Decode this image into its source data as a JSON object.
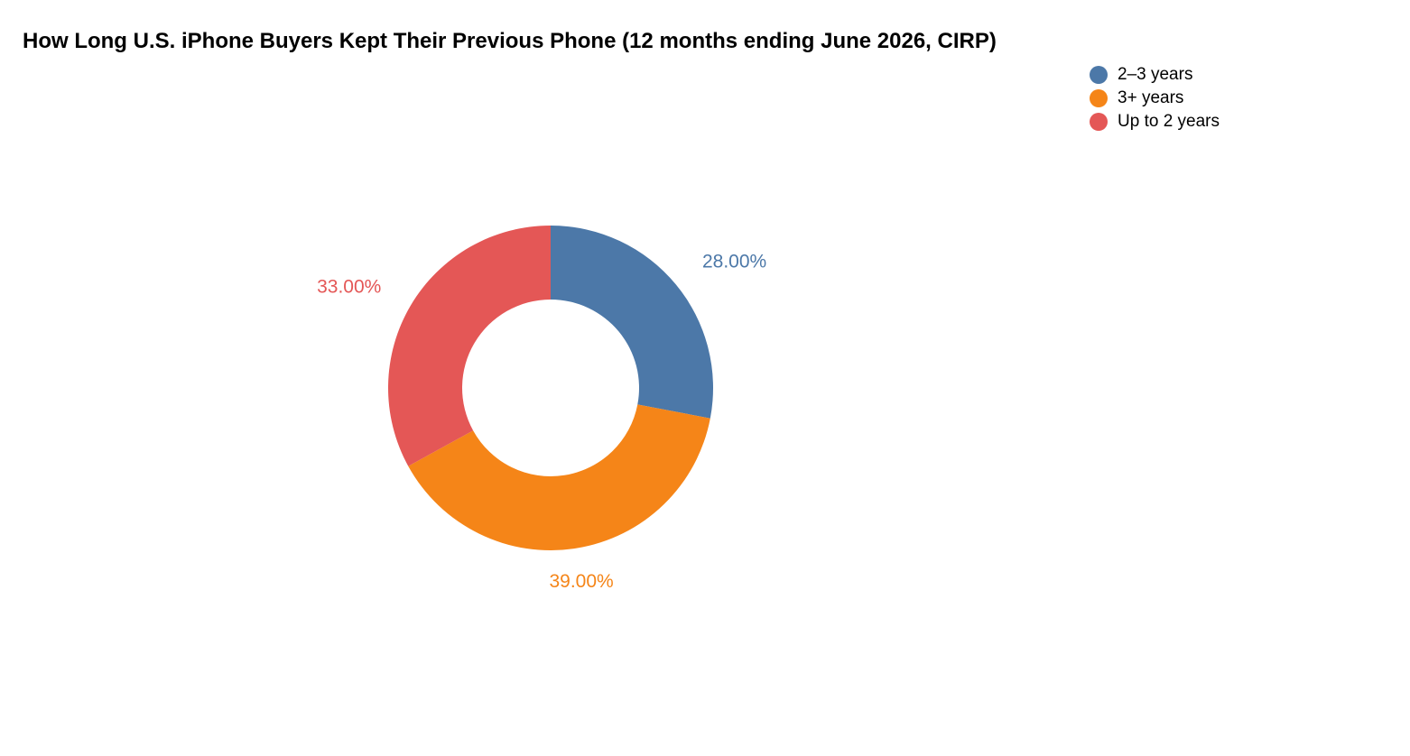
{
  "chart_data": {
    "type": "pie",
    "variant": "donut",
    "title": "How Long U.S. iPhone Buyers Kept Their Previous Phone (12 months ending June 2026, CIRP)",
    "slices": [
      {
        "label": "2–3 years",
        "value": 28.0,
        "display": "28.00%",
        "color": "#4c78a8"
      },
      {
        "label": "3+ years",
        "value": 39.0,
        "display": "39.00%",
        "color": "#f58518"
      },
      {
        "label": "Up to 2 years",
        "value": 33.0,
        "display": "33.00%",
        "color": "#e45756"
      }
    ],
    "start_angle": "top",
    "direction": "clockwise",
    "legend_position": "top-right"
  }
}
